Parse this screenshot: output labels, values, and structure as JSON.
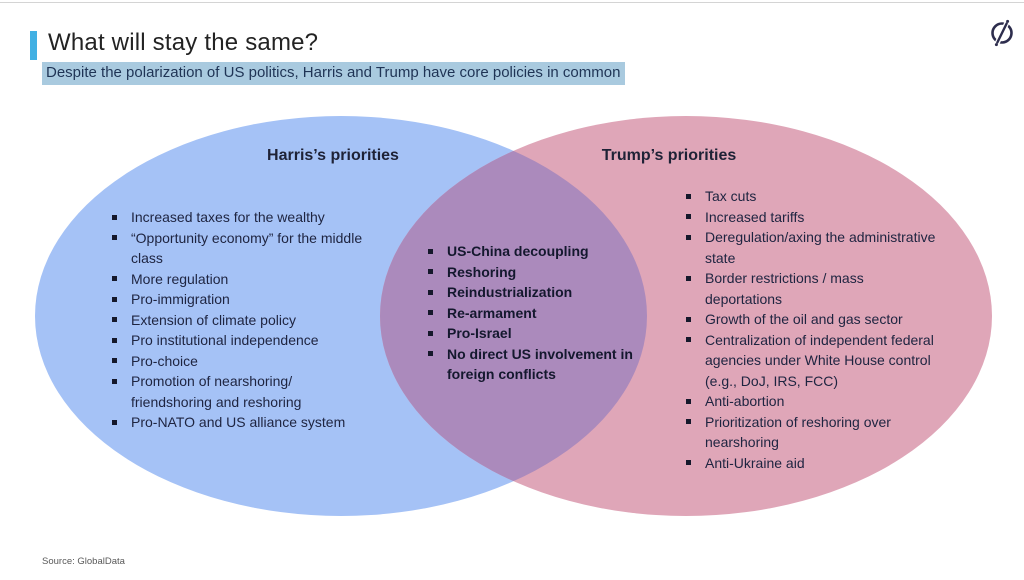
{
  "page": {
    "title": "What will stay the same?",
    "subtitle": "Despite the polarization of US politics, Harris and Trump have core policies in common",
    "source": "Source: GlobalData",
    "logo": "globaldata-logo"
  },
  "colors": {
    "accent_bar": "#41b0e3",
    "subtitle_highlight": "#a9cadf",
    "harris_ellipse": "#a5c2f6",
    "trump_ellipse": "#dfa6b8",
    "overlap_region": "#ab8abc",
    "body_text": "#1e2440",
    "logo_ink": "#2d2d4d"
  },
  "venn": {
    "left": {
      "title": "Harris’s priorities",
      "items": [
        "Increased taxes for the wealthy",
        "“Opportunity economy” for the middle class",
        "More regulation",
        "Pro-immigration",
        "Extension of climate policy",
        "Pro institutional independence",
        "Pro-choice",
        "Promotion of nearshoring/ friendshoring and reshoring",
        "Pro-NATO and US alliance system"
      ]
    },
    "overlap": {
      "items": [
        "US-China decoupling",
        "Reshoring",
        "Reindustrialization",
        "Re-armament",
        "Pro-Israel",
        "No direct US involvement in foreign conflicts"
      ]
    },
    "right": {
      "title": "Trump’s priorities",
      "items": [
        "Tax cuts",
        "Increased tariffs",
        "Deregulation/axing the administrative state",
        "Border restrictions / mass deportations",
        "Growth of the oil and gas sector",
        "Centralization of independent federal agencies under White House control (e.g., DoJ, IRS, FCC)",
        "Anti-abortion",
        "Prioritization of reshoring over nearshoring",
        "Anti-Ukraine aid"
      ]
    }
  }
}
